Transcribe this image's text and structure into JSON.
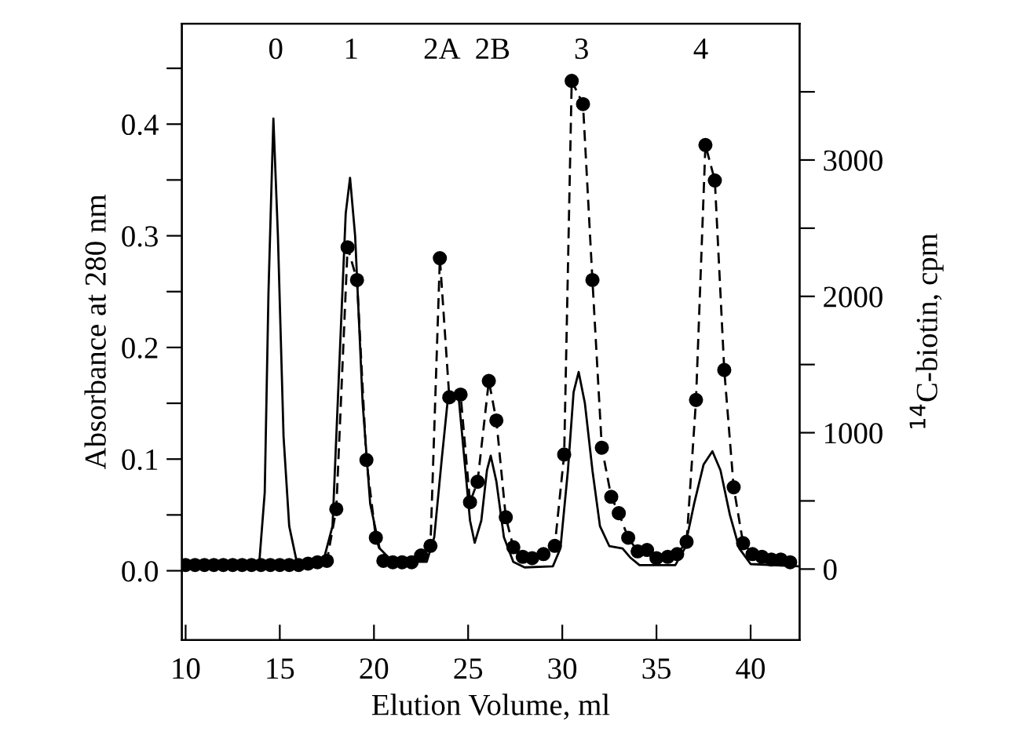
{
  "chart_data": {
    "type": "line",
    "xlabel": "Elution Volume, ml",
    "ylabel": "Absorbance at 280 nm",
    "y2label": "$^{14}$C-biotin, cpm",
    "xlim": [
      9.8,
      42.6
    ],
    "xticks": [
      10,
      15,
      20,
      25,
      30,
      35,
      40
    ],
    "ylim": [
      -0.062,
      0.49
    ],
    "yticks": [
      {
        "value": 0,
        "label": "0.0"
      },
      {
        "value": 0.05,
        "label": null
      },
      {
        "value": 0.1,
        "label": "0.1"
      },
      {
        "value": 0.15,
        "label": null
      },
      {
        "value": 0.2,
        "label": "0.2"
      },
      {
        "value": 0.25,
        "label": null
      },
      {
        "value": 0.3,
        "label": "0.3"
      },
      {
        "value": 0.35,
        "label": null
      },
      {
        "value": 0.4,
        "label": "0.4"
      },
      {
        "value": 0.45,
        "label": null
      }
    ],
    "y2lim": [
      -520,
      4000
    ],
    "y2ticks": [
      0,
      {
        "value": 500,
        "label": null
      },
      1000,
      {
        "value": 1500,
        "label": null
      },
      2000,
      {
        "value": 2500,
        "label": null
      },
      3000,
      {
        "value": 3500,
        "label": null
      }
    ],
    "annotations": [
      "0",
      "1",
      "2A",
      "2B",
      "3",
      "4"
    ],
    "series": [
      {
        "color": "#000000",
        "marker": "none",
        "line_style": "solid",
        "x": [
          9.8,
          13.9,
          14.2,
          14.4,
          14.66,
          14.9,
          15.2,
          15.5,
          15.9,
          17.3,
          17.8,
          18.2,
          18.5,
          18.73,
          19.0,
          19.4,
          19.8,
          20.3,
          21.0,
          22.8,
          23.2,
          23.6,
          23.9,
          24.2,
          24.5,
          24.8,
          25.1,
          25.35,
          25.7,
          26.0,
          26.2,
          26.5,
          26.9,
          27.4,
          28.0,
          29.5,
          29.9,
          30.3,
          30.6,
          30.87,
          31.2,
          31.6,
          32.0,
          32.5,
          33.2,
          33.6,
          34.1,
          36.0,
          36.5,
          37.0,
          37.5,
          37.97,
          38.4,
          38.9,
          39.4,
          40.0,
          42.5
        ],
        "values": [
          0.005,
          0.005,
          0.07,
          0.25,
          0.405,
          0.3,
          0.12,
          0.04,
          0.008,
          0.008,
          0.04,
          0.2,
          0.32,
          0.352,
          0.3,
          0.15,
          0.06,
          0.02,
          0.008,
          0.008,
          0.03,
          0.1,
          0.15,
          0.157,
          0.155,
          0.1,
          0.045,
          0.025,
          0.045,
          0.09,
          0.103,
          0.08,
          0.03,
          0.008,
          0.003,
          0.004,
          0.02,
          0.09,
          0.16,
          0.178,
          0.15,
          0.09,
          0.04,
          0.022,
          0.02,
          0.012,
          0.005,
          0.005,
          0.02,
          0.06,
          0.095,
          0.107,
          0.09,
          0.05,
          0.02,
          0.006,
          0.004
        ]
      },
      {
        "axis": "y2",
        "color": "#000000",
        "marker": "circle",
        "line_style": "dashed",
        "x": [
          10.0,
          10.5,
          11.0,
          11.5,
          12.0,
          12.5,
          13.0,
          13.5,
          14.0,
          14.5,
          15.0,
          15.5,
          16.0,
          16.5,
          17.0,
          17.5,
          18.0,
          18.6,
          19.1,
          19.6,
          20.1,
          20.5,
          21.0,
          21.5,
          22.0,
          22.5,
          23.0,
          23.5,
          24.0,
          24.6,
          25.1,
          25.5,
          26.1,
          26.5,
          27.0,
          27.4,
          27.9,
          28.4,
          29.0,
          29.6,
          30.1,
          30.5,
          31.1,
          31.6,
          32.1,
          32.6,
          33.0,
          33.5,
          34.0,
          34.5,
          35.0,
          35.6,
          36.1,
          36.6,
          37.1,
          37.6,
          38.1,
          38.6,
          39.1,
          39.6,
          40.1,
          40.6,
          41.1,
          41.6,
          42.1
        ],
        "values": [
          30,
          30,
          30,
          30,
          30,
          30,
          30,
          30,
          30,
          30,
          30,
          30,
          30,
          40,
          50,
          60,
          440,
          2360,
          2120,
          800,
          230,
          60,
          50,
          50,
          50,
          100,
          170,
          2280,
          1260,
          1280,
          490,
          640,
          1380,
          1090,
          380,
          160,
          90,
          80,
          110,
          170,
          840,
          3580,
          3410,
          2120,
          890,
          530,
          410,
          230,
          130,
          140,
          80,
          90,
          110,
          200,
          1240,
          3110,
          2850,
          1460,
          600,
          190,
          110,
          90,
          70,
          70,
          50
        ]
      }
    ]
  }
}
